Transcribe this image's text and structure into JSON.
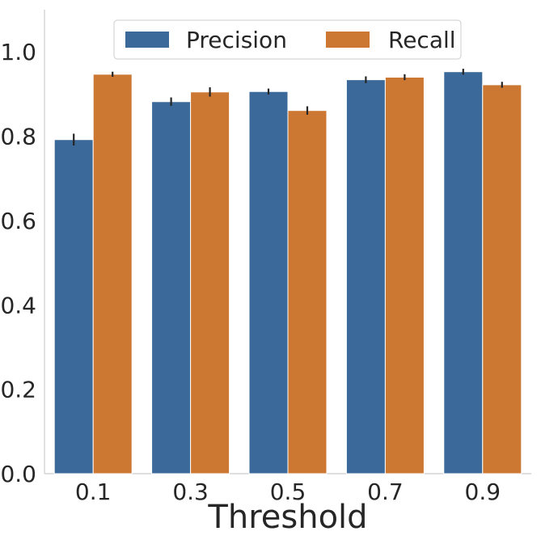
{
  "chart_data": {
    "type": "bar",
    "title": "",
    "xlabel": "Threshold",
    "ylabel": "",
    "categories": [
      "0.1",
      "0.3",
      "0.5",
      "0.7",
      "0.9"
    ],
    "series": [
      {
        "name": "Precision",
        "color": "#3b6a9a",
        "values": [
          0.792,
          0.882,
          0.906,
          0.934,
          0.953
        ],
        "errors": [
          0.014,
          0.01,
          0.007,
          0.008,
          0.007
        ]
      },
      {
        "name": "Recall",
        "color": "#cc7833",
        "values": [
          0.947,
          0.905,
          0.861,
          0.94,
          0.922
        ],
        "errors": [
          0.006,
          0.011,
          0.01,
          0.007,
          0.007
        ]
      }
    ],
    "ylim": [
      0,
      1.1
    ],
    "yticks": [
      0.0,
      0.2,
      0.4,
      0.6,
      0.8,
      1.0
    ],
    "ytick_labels": [
      "0.0",
      "0.2",
      "0.4",
      "0.6",
      "0.8",
      "1.0"
    ],
    "grid": false,
    "legend_position": "top-center",
    "legend_columns": 2
  }
}
